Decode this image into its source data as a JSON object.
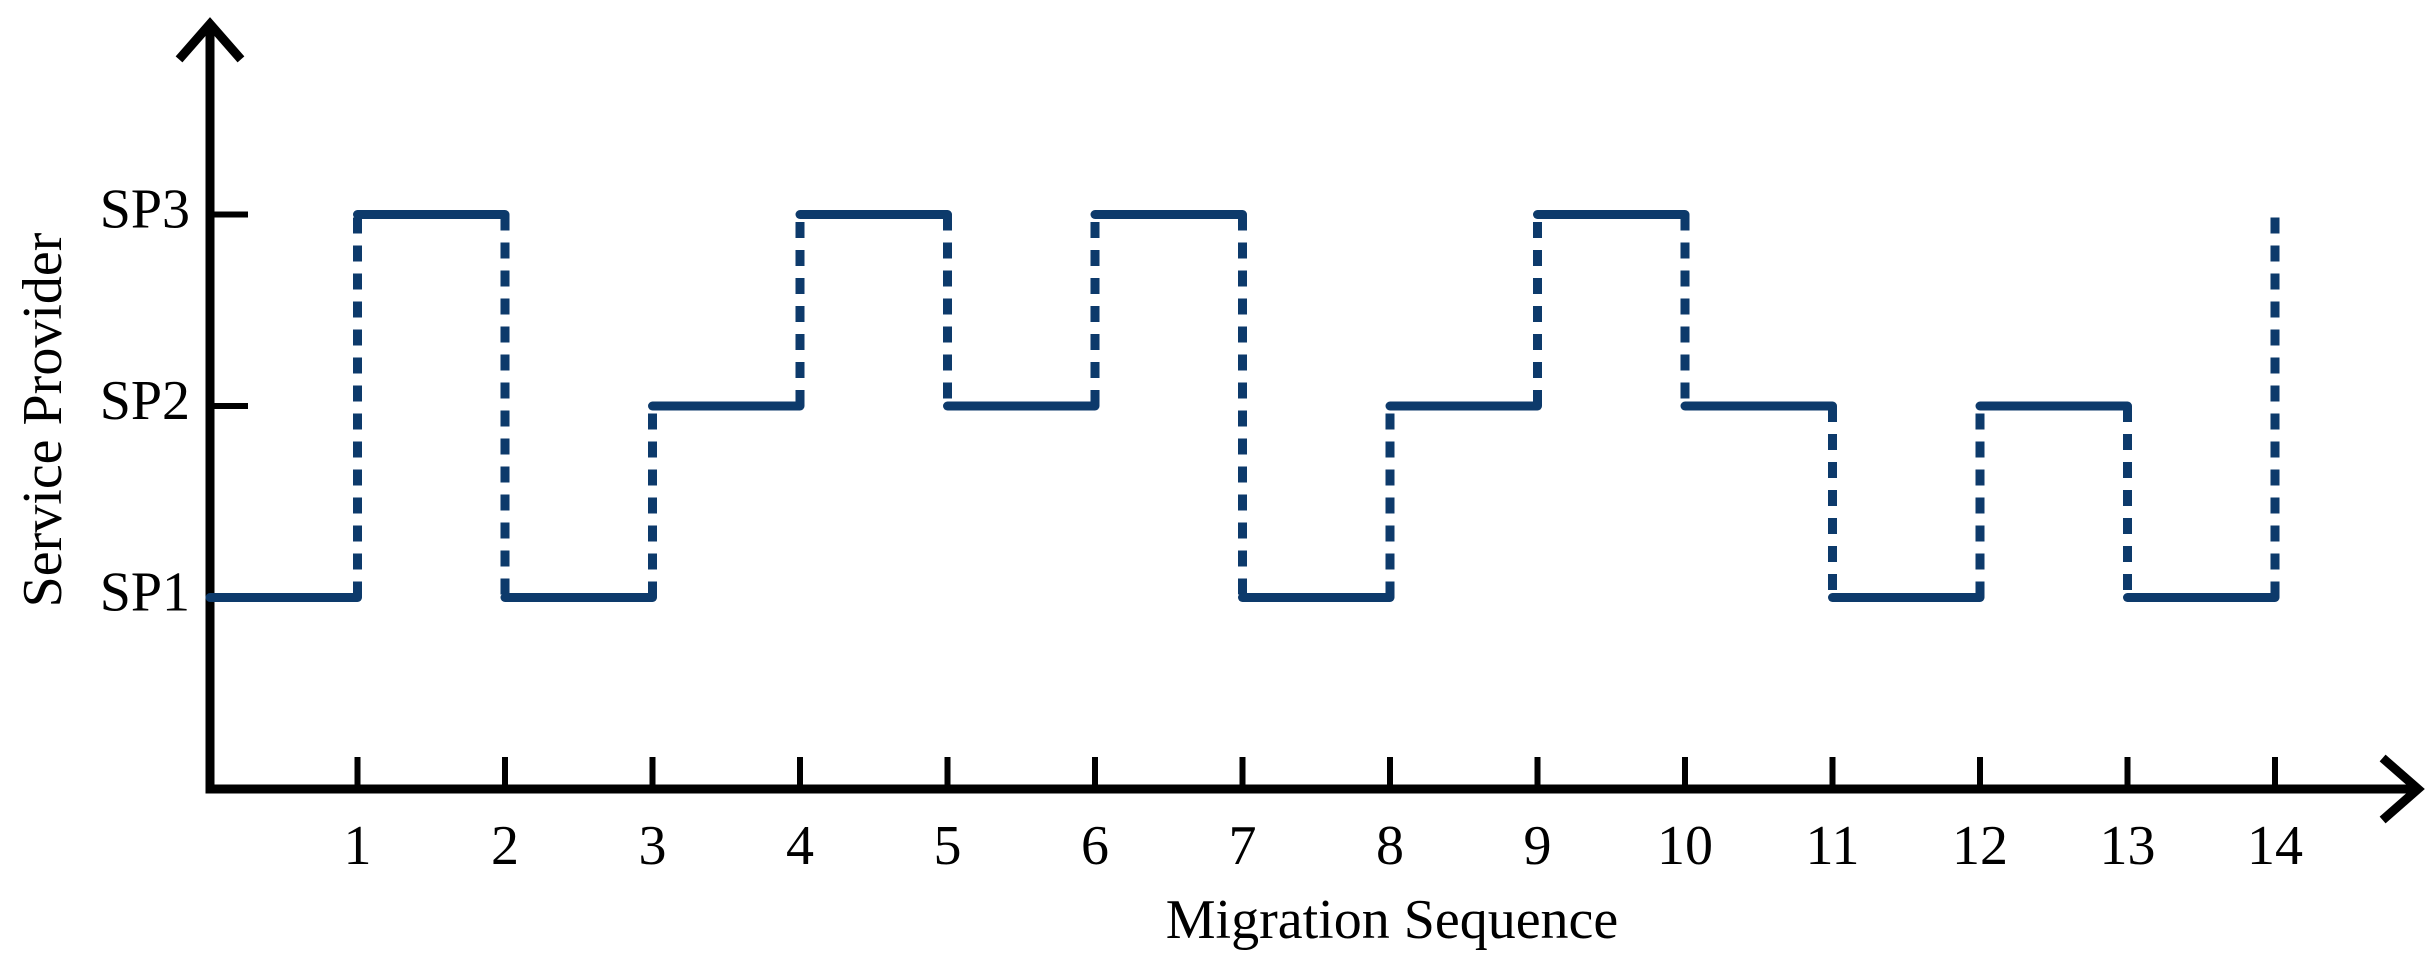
{
  "chart_data": {
    "type": "step",
    "x_label": "Migration Sequence",
    "y_label": "Service Provider",
    "x": [
      0,
      1,
      2,
      3,
      4,
      5,
      6,
      7,
      8,
      9,
      10,
      11,
      12,
      13,
      14
    ],
    "values": [
      1,
      3,
      1,
      2,
      3,
      2,
      3,
      1,
      2,
      3,
      2,
      1,
      2,
      1,
      3
    ],
    "color": "#0d3a6b",
    "xlim": [
      0,
      15
    ],
    "ylim": [
      0,
      4
    ],
    "xticks": [
      1,
      2,
      3,
      4,
      5,
      6,
      7,
      8,
      9,
      10,
      11,
      12,
      13,
      14
    ],
    "yticks": [
      {
        "value": 1,
        "label": "SP1"
      },
      {
        "value": 2,
        "label": "SP2"
      },
      {
        "value": 3,
        "label": "SP3"
      }
    ],
    "grid": false
  }
}
